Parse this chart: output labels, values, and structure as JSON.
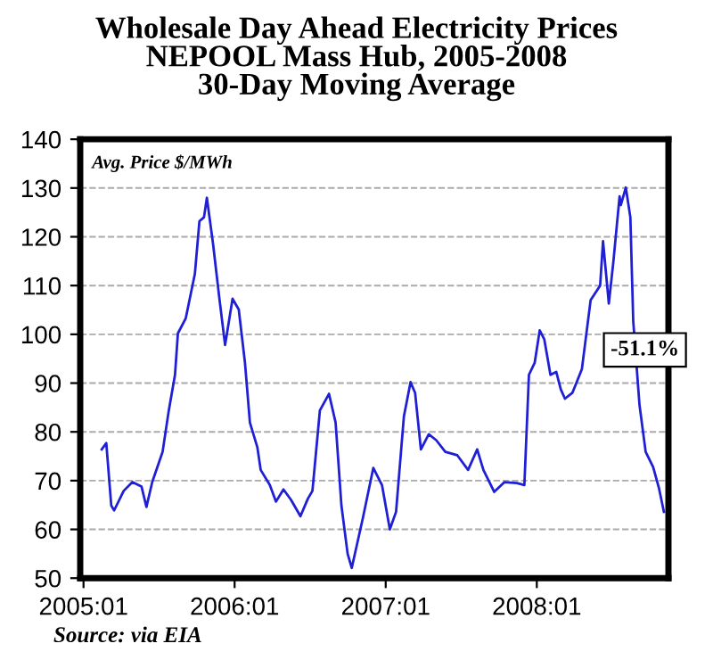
{
  "chart_data": {
    "type": "line",
    "title": "Wholesale Day Ahead Electricity Prices\nNEPOOL Mass Hub, 2005-2008\n30-Day Moving Average",
    "ylabel": "Avg. Price $/MWh",
    "annotations": [
      "-51.1%",
      "Source: via EIA"
    ],
    "series": [
      {
        "color": "#1f1fd6",
        "x": [
          "2005-02-14",
          "2005-02-25",
          "2005-03-09",
          "2005-03-16",
          "2005-04-08",
          "2005-04-29",
          "2005-05-21",
          "2005-06-02",
          "2005-06-16",
          "2005-07-11",
          "2005-07-26",
          "2005-08-10",
          "2005-08-17",
          "2005-09-05",
          "2005-09-27",
          "2005-10-08",
          "2005-10-19",
          "2005-10-26",
          "2005-11-10",
          "2005-11-25",
          "2005-12-09",
          "2005-12-27",
          "2006-01-11",
          "2006-01-26",
          "2006-02-07",
          "2006-02-25",
          "2006-03-05",
          "2006-03-27",
          "2006-04-11",
          "2006-04-29",
          "2006-05-17",
          "2006-06-09",
          "2006-06-27",
          "2006-07-08",
          "2006-07-26",
          "2006-08-17",
          "2006-09-02",
          "2006-09-16",
          "2006-10-01",
          "2006-10-11",
          "2006-11-07",
          "2006-12-02",
          "2006-12-23",
          "2007-01-11",
          "2007-01-26",
          "2007-02-14",
          "2007-03-02",
          "2007-03-13",
          "2007-03-27",
          "2007-04-15",
          "2007-05-03",
          "2007-05-25",
          "2007-06-23",
          "2007-07-19",
          "2007-08-10",
          "2007-08-25",
          "2007-09-20",
          "2007-10-15",
          "2007-11-14",
          "2007-12-02",
          "2007-12-13",
          "2007-12-27",
          "2008-01-08",
          "2008-01-19",
          "2008-02-03",
          "2008-02-17",
          "2008-02-28",
          "2008-03-09",
          "2008-03-27",
          "2008-04-19",
          "2008-05-10",
          "2008-06-02",
          "2008-06-09",
          "2008-06-23",
          "2008-07-04",
          "2008-07-19",
          "2008-07-22",
          "2008-08-03",
          "2008-08-14",
          "2008-08-21",
          "2008-09-05",
          "2008-09-20",
          "2008-10-08",
          "2008-10-22",
          "2008-11-03"
        ],
        "values": [
          76.4,
          77.7,
          64.9,
          63.9,
          67.9,
          69.7,
          68.8,
          64.6,
          69.7,
          75.9,
          84.4,
          91.7,
          100.2,
          103.3,
          112.4,
          123.2,
          124.0,
          128.0,
          118.5,
          107.5,
          97.8,
          107.3,
          105.1,
          94.2,
          81.9,
          76.8,
          72.2,
          69.1,
          65.7,
          68.2,
          66.1,
          62.7,
          66.3,
          67.9,
          84.4,
          87.8,
          81.9,
          64.9,
          55.0,
          52.1,
          62.4,
          72.6,
          69.1,
          60.0,
          63.6,
          83.2,
          90.2,
          88.0,
          76.4,
          79.5,
          78.3,
          75.9,
          75.2,
          72.2,
          76.4,
          72.2,
          67.7,
          69.7,
          69.5,
          69.1,
          91.7,
          94.2,
          100.8,
          99.0,
          91.7,
          92.3,
          88.7,
          86.8,
          88.0,
          92.9,
          107.0,
          110.0,
          119.1,
          106.3,
          114.9,
          128.3,
          126.5,
          130.1,
          124.0,
          102.7,
          85.6,
          75.9,
          72.8,
          68.5,
          63.6
        ]
      }
    ],
    "xlim": [
      "2004-12-24",
      "2008-11-14"
    ],
    "xticks": [
      {
        "value": "2005-01",
        "label": "2005:01"
      },
      {
        "value": "2006-01",
        "label": "2006:01"
      },
      {
        "value": "2007-01",
        "label": "2007:01"
      },
      {
        "value": "2008-01",
        "label": "2008:01"
      }
    ],
    "ylim": [
      50,
      140
    ],
    "yticks": [
      50,
      60,
      70,
      80,
      90,
      100,
      110,
      120,
      130,
      140
    ],
    "grid": "y",
    "legend": false,
    "marker": "none",
    "line_style": "solid"
  }
}
